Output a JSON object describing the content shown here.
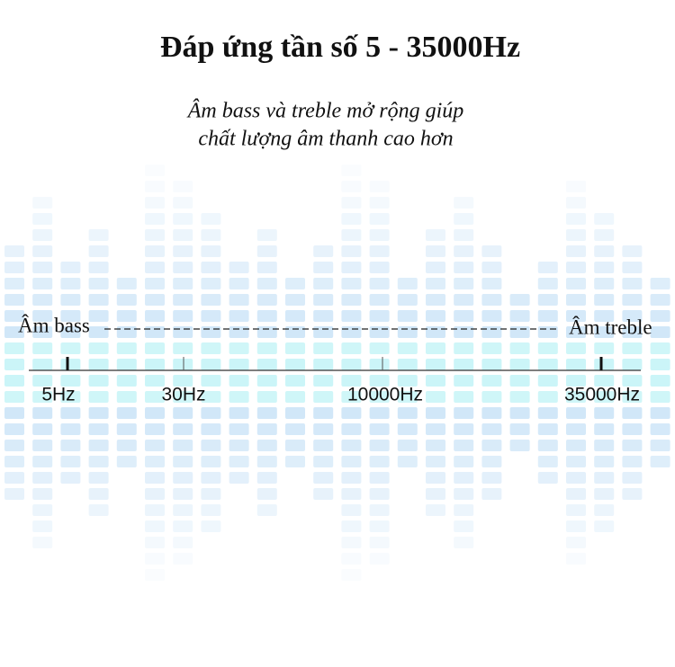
{
  "header": {
    "title": "Đáp ứng tần số 5 - 35000Hz",
    "subtitle": [
      "Âm bass và treble mở rộng giúp",
      "chất lượng âm thanh cao hơn"
    ]
  },
  "scale": {
    "left_label": "Âm bass",
    "right_label": "Âm treble",
    "ticks": [
      "5Hz",
      "30Hz",
      "10000Hz",
      "35000Hz"
    ]
  }
}
